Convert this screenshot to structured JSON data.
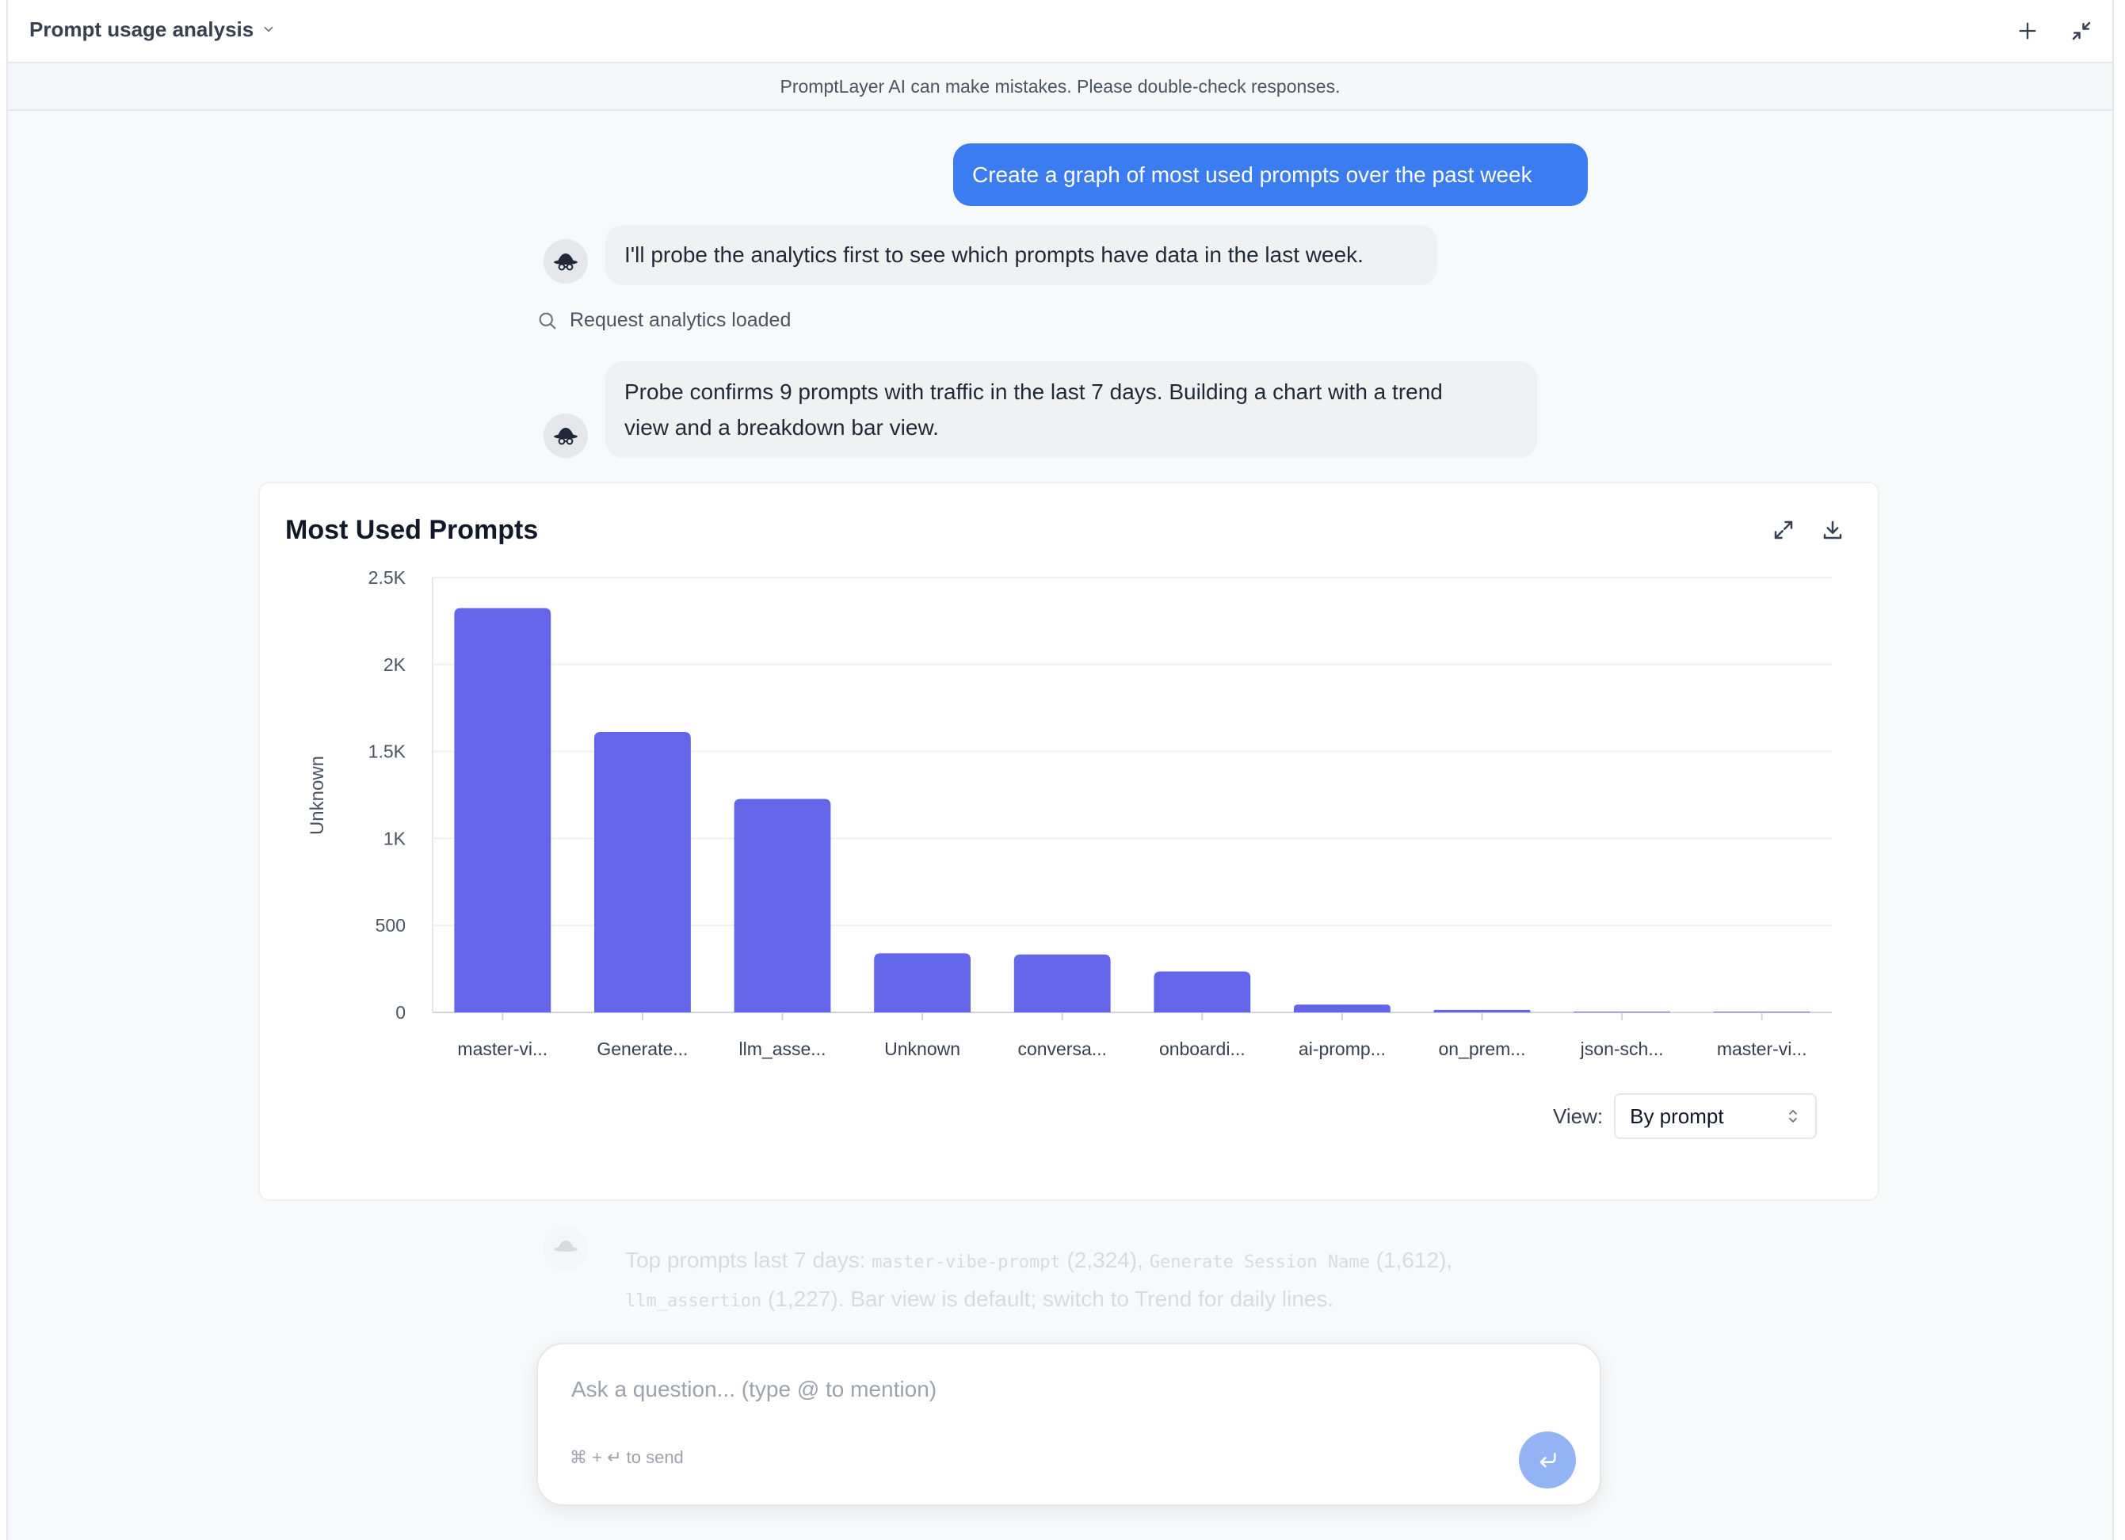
{
  "header": {
    "title": "Prompt usage analysis"
  },
  "notice": "PromptLayer AI can make mistakes. Please double-check responses.",
  "messages": {
    "user": "Create a graph of most used prompts over the past week",
    "ai_1": "I'll probe the analytics first to see which prompts have data in the last week.",
    "tool": "Request analytics loaded",
    "ai_2_line1": "Probe confirms 9 prompts with traffic in the last 7 days. Building a chart with a trend",
    "ai_2_line2": "view and a breakdown bar view."
  },
  "chart_data": {
    "type": "bar",
    "title": "Most Used Prompts",
    "ylabel": "Unknown",
    "xlabel": "",
    "ylim": [
      0,
      2500
    ],
    "y_ticks": [
      "0",
      "500",
      "1K",
      "1.5K",
      "2K",
      "2.5K"
    ],
    "categories": [
      "master-vi...",
      "Generate...",
      "llm_asse...",
      "Unknown",
      "conversa...",
      "onboardi...",
      "ai-promp...",
      "on_prem...",
      "json-sch...",
      "master-vi..."
    ],
    "values": [
      2324,
      1612,
      1227,
      340,
      333,
      235,
      45,
      14,
      4,
      1
    ],
    "bar_color": "#6366e8",
    "grid": true
  },
  "view": {
    "label": "View:",
    "selected": "By prompt"
  },
  "ghost_message": {
    "prefix": "Top prompts last 7 days: ",
    "p1": "master-vibe-prompt",
    "v1": " (2,324), ",
    "p2": "Generate Session Name",
    "v2": " (1,612),",
    "p3": "llm_assertion",
    "rest": " (1,227). Bar view is default; switch to Trend for daily lines."
  },
  "composer": {
    "placeholder": "Ask a question... (type @ to mention)",
    "hint": "⌘ + ↵ to send"
  },
  "icons": {
    "new_chat": "plus-icon",
    "collapse": "collapse-icon",
    "expand": "expand-icon",
    "download": "download-icon",
    "send": "enter-icon",
    "tool": "search-icon"
  }
}
